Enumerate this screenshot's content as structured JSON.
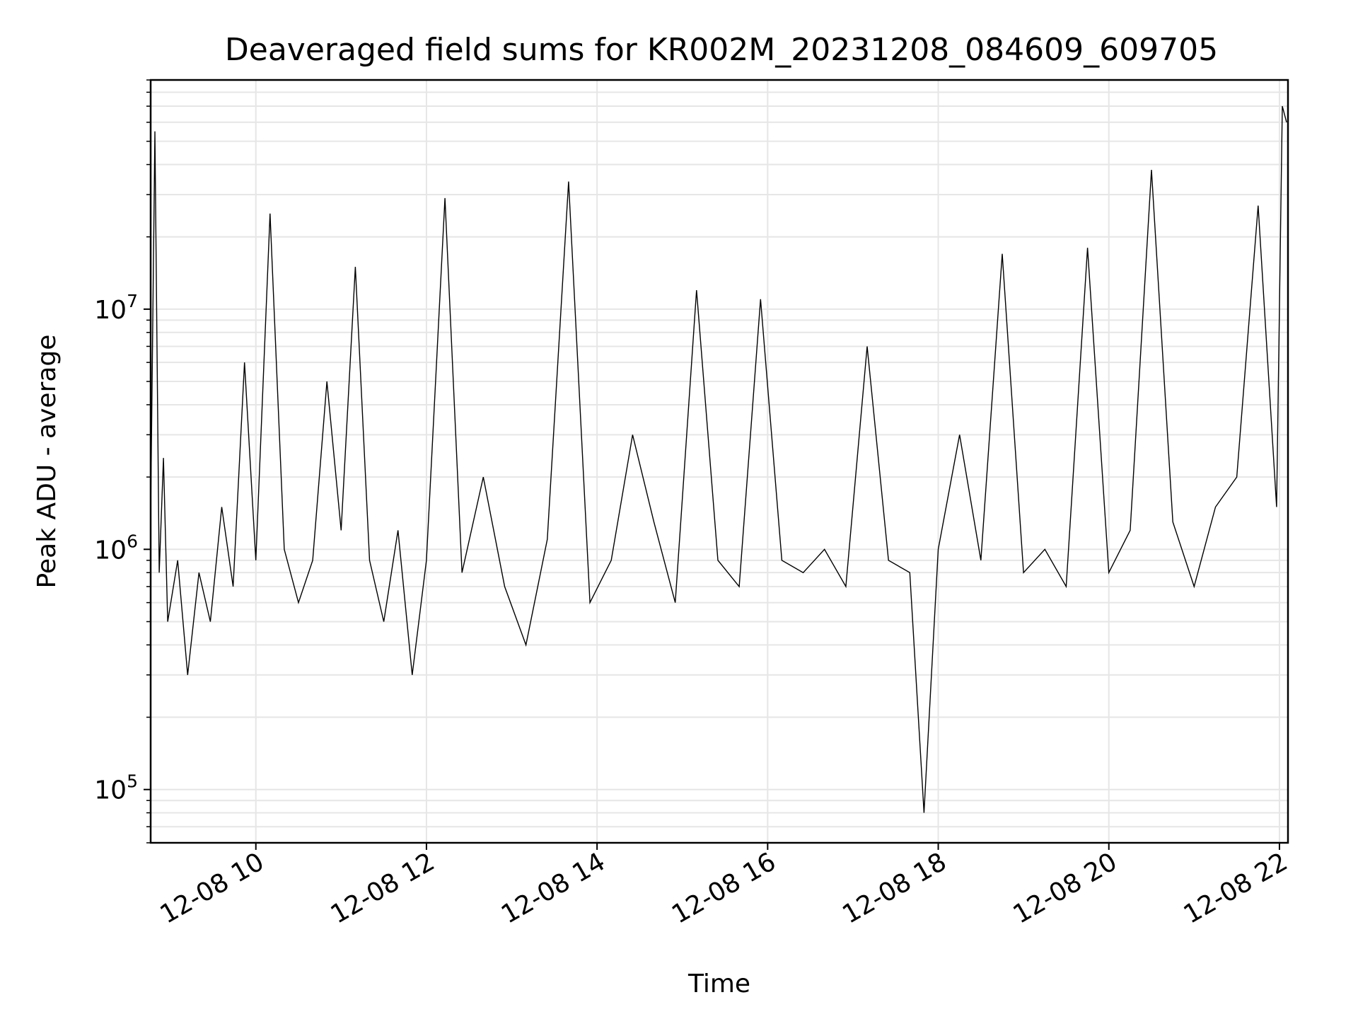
{
  "chart_data": {
    "type": "line",
    "title": "Deaveraged field sums for KR002M_20231208_084609_609705",
    "xlabel": "Time",
    "ylabel": "Peak ADU - average",
    "y_scale": "log",
    "ylim": [
      60000,
      90000000
    ],
    "xlim": [
      "2023-12-08 08:46",
      "2023-12-08 22:06"
    ],
    "grid": true,
    "x_ticks": [
      {
        "t": "2023-12-08 10:00",
        "label": "12-08 10"
      },
      {
        "t": "2023-12-08 12:00",
        "label": "12-08 12"
      },
      {
        "t": "2023-12-08 14:00",
        "label": "12-08 14"
      },
      {
        "t": "2023-12-08 16:00",
        "label": "12-08 16"
      },
      {
        "t": "2023-12-08 18:00",
        "label": "12-08 18"
      },
      {
        "t": "2023-12-08 20:00",
        "label": "12-08 20"
      },
      {
        "t": "2023-12-08 22:00",
        "label": "12-08 22"
      }
    ],
    "y_ticks": [
      {
        "value": 100000,
        "base": "10",
        "exp": "5"
      },
      {
        "value": 1000000,
        "base": "10",
        "exp": "6"
      },
      {
        "value": 10000000,
        "base": "10",
        "exp": "7"
      }
    ],
    "line_color": "#000000",
    "series": [
      {
        "x": [
          "2023-12-08 08:46",
          "2023-12-08 08:49",
          "2023-12-08 08:52",
          "2023-12-08 08:55",
          "2023-12-08 08:58",
          "2023-12-08 09:05",
          "2023-12-08 09:12",
          "2023-12-08 09:20",
          "2023-12-08 09:28",
          "2023-12-08 09:36",
          "2023-12-08 09:44",
          "2023-12-08 09:52",
          "2023-12-08 10:00",
          "2023-12-08 10:10",
          "2023-12-08 10:20",
          "2023-12-08 10:30",
          "2023-12-08 10:40",
          "2023-12-08 10:50",
          "2023-12-08 11:00",
          "2023-12-08 11:10",
          "2023-12-08 11:20",
          "2023-12-08 11:30",
          "2023-12-08 11:40",
          "2023-12-08 11:50",
          "2023-12-08 12:00",
          "2023-12-08 12:13",
          "2023-12-08 12:25",
          "2023-12-08 12:40",
          "2023-12-08 12:55",
          "2023-12-08 13:10",
          "2023-12-08 13:25",
          "2023-12-08 13:40",
          "2023-12-08 13:55",
          "2023-12-08 14:10",
          "2023-12-08 14:25",
          "2023-12-08 14:40",
          "2023-12-08 14:55",
          "2023-12-08 15:10",
          "2023-12-08 15:25",
          "2023-12-08 15:40",
          "2023-12-08 15:55",
          "2023-12-08 16:10",
          "2023-12-08 16:25",
          "2023-12-08 16:40",
          "2023-12-08 16:55",
          "2023-12-08 17:10",
          "2023-12-08 17:25",
          "2023-12-08 17:40",
          "2023-12-08 17:50",
          "2023-12-08 18:00",
          "2023-12-08 18:15",
          "2023-12-08 18:30",
          "2023-12-08 18:45",
          "2023-12-08 19:00",
          "2023-12-08 19:15",
          "2023-12-08 19:30",
          "2023-12-08 19:45",
          "2023-12-08 20:00",
          "2023-12-08 20:15",
          "2023-12-08 20:30",
          "2023-12-08 20:45",
          "2023-12-08 21:00",
          "2023-12-08 21:15",
          "2023-12-08 21:30",
          "2023-12-08 21:45",
          "2023-12-08 21:58",
          "2023-12-08 22:02",
          "2023-12-08 22:05"
        ],
        "y": [
          1400000,
          55000000,
          800000,
          2400000,
          500000,
          900000,
          300000,
          800000,
          500000,
          1500000,
          700000,
          6000000,
          900000,
          25000000,
          1000000,
          600000,
          900000,
          5000000,
          1200000,
          15000000,
          900000,
          500000,
          1200000,
          300000,
          900000,
          29000000,
          800000,
          2000000,
          700000,
          400000,
          1100000,
          34000000,
          600000,
          900000,
          3000000,
          1300000,
          600000,
          12000000,
          900000,
          700000,
          11000000,
          900000,
          800000,
          1000000,
          700000,
          7000000,
          900000,
          800000,
          80000,
          1000000,
          3000000,
          900000,
          17000000,
          800000,
          1000000,
          700000,
          18000000,
          800000,
          1200000,
          38000000,
          1300000,
          700000,
          1500000,
          2000000,
          27000000,
          1500000,
          70000000,
          60000000
        ]
      }
    ]
  }
}
